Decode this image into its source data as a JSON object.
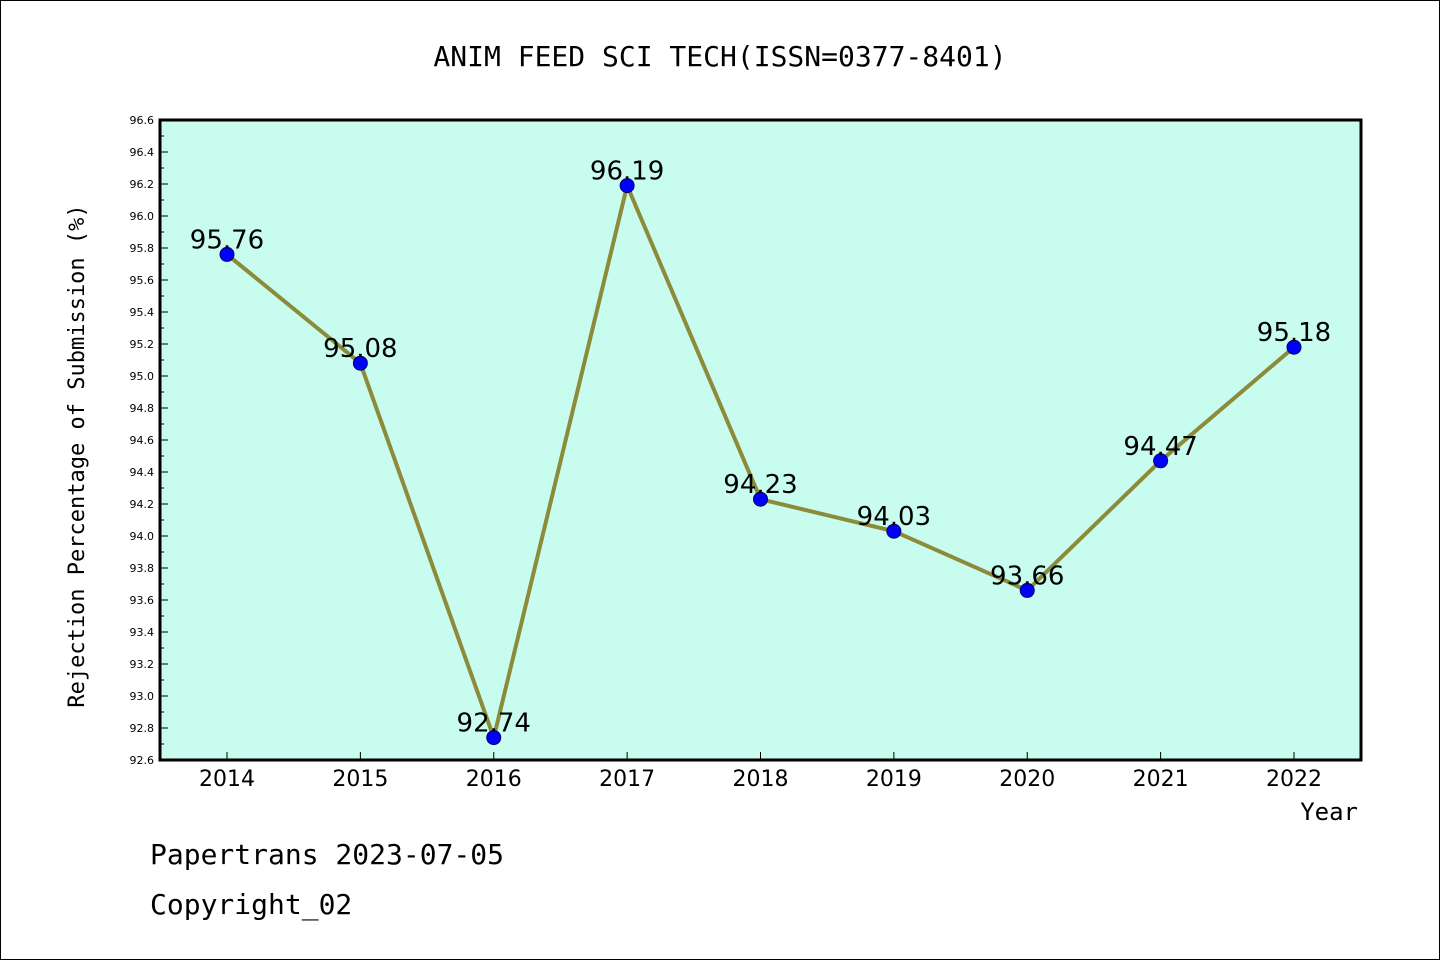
{
  "chart_data": {
    "type": "line",
    "title": "ANIM FEED SCI TECH(ISSN=0377-8401)",
    "xlabel": "Year",
    "ylabel": "Rejection Percentage of Submission (%)",
    "categories": [
      "2014",
      "2015",
      "2016",
      "2017",
      "2018",
      "2019",
      "2020",
      "2021",
      "2022"
    ],
    "values": [
      95.76,
      95.08,
      92.74,
      96.19,
      94.23,
      94.03,
      93.66,
      94.47,
      95.18
    ],
    "data_labels": [
      "95.76",
      "95.08",
      "92.74",
      "96.19",
      "94.23",
      "94.03",
      "93.66",
      "94.47",
      "95.18"
    ],
    "y_ticks": [
      "92.6",
      "92.8",
      "93.0",
      "93.2",
      "93.4",
      "93.6",
      "93.8",
      "94.0",
      "94.2",
      "94.4",
      "94.6",
      "94.8",
      "95.0",
      "95.2",
      "95.4",
      "95.6",
      "95.8",
      "96.0",
      "96.2",
      "96.4",
      "96.6"
    ],
    "ylim": [
      92.6,
      96.6
    ],
    "grid": false,
    "colors": {
      "plot_background": "#c8fcee",
      "line": "#8b8b3a",
      "marker": "#0000ff",
      "axes": "#000000"
    }
  },
  "footer": {
    "line1": "Papertrans 2023-07-05",
    "line2": "Copyright_02"
  }
}
